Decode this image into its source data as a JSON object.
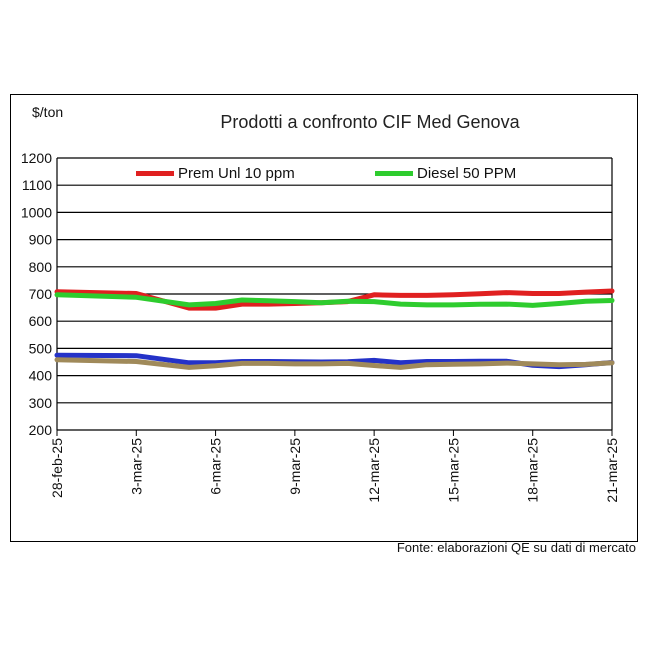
{
  "chart_data": {
    "type": "line",
    "title": "Prodotti a confronto CIF Med Genova",
    "ylabel": "$/ton",
    "source": "Fonte: elaborazioni QE su dati di mercato",
    "ylim": [
      200,
      1200
    ],
    "yticks": [
      "1200",
      "1100",
      "1000",
      "900",
      "800",
      "700",
      "600",
      "500",
      "400",
      "300",
      "200"
    ],
    "xlim": [
      0,
      21
    ],
    "xticks": [
      {
        "d": 0,
        "label": "28-feb-25"
      },
      {
        "d": 3,
        "label": "3-mar-25"
      },
      {
        "d": 6,
        "label": "6-mar-25"
      },
      {
        "d": 9,
        "label": "9-mar-25"
      },
      {
        "d": 12,
        "label": "12-mar-25"
      },
      {
        "d": 15,
        "label": "15-mar-25"
      },
      {
        "d": 18,
        "label": "18-mar-25"
      },
      {
        "d": 21,
        "label": "21-mar-25"
      }
    ],
    "grid": true,
    "legend_position": "top",
    "series": [
      {
        "name": "Prem Unl 10 ppm",
        "color": "#e02020",
        "x": [
          0,
          3,
          5,
          6,
          7,
          8,
          9,
          10,
          11,
          12,
          13,
          14,
          15,
          16,
          17,
          18,
          19,
          20,
          21
        ],
        "y": [
          708,
          702,
          648,
          648,
          663,
          663,
          665,
          668,
          672,
          697,
          695,
          695,
          697,
          701,
          705,
          702,
          702,
          707,
          711
        ],
        "legend": true
      },
      {
        "name": "Diesel 50 PPM",
        "color": "#2ecc2e",
        "x": [
          0,
          3,
          5,
          6,
          7,
          8,
          9,
          10,
          11,
          12,
          13,
          14,
          15,
          16,
          17,
          18,
          19,
          20,
          21
        ],
        "y": [
          697,
          688,
          660,
          665,
          678,
          675,
          672,
          668,
          673,
          672,
          663,
          660,
          660,
          662,
          663,
          658,
          665,
          673,
          676
        ],
        "legend": true
      },
      {
        "name": "",
        "color": "#2432c8",
        "x": [
          0,
          3,
          5,
          6,
          7,
          8,
          9,
          10,
          11,
          12,
          13,
          14,
          15,
          16,
          17,
          18,
          19,
          20,
          21
        ],
        "y": [
          475,
          473,
          447,
          447,
          452,
          452,
          451,
          450,
          451,
          456,
          447,
          452,
          452,
          453,
          453,
          438,
          433,
          440,
          448
        ],
        "legend": false
      },
      {
        "name": "",
        "color": "#a08a5a",
        "x": [
          0,
          3,
          5,
          6,
          7,
          8,
          9,
          10,
          11,
          12,
          13,
          14,
          15,
          16,
          17,
          18,
          19,
          20,
          21
        ],
        "y": [
          458,
          452,
          430,
          436,
          445,
          445,
          443,
          443,
          445,
          437,
          430,
          440,
          442,
          443,
          446,
          443,
          440,
          441,
          447
        ],
        "legend": false
      }
    ]
  }
}
